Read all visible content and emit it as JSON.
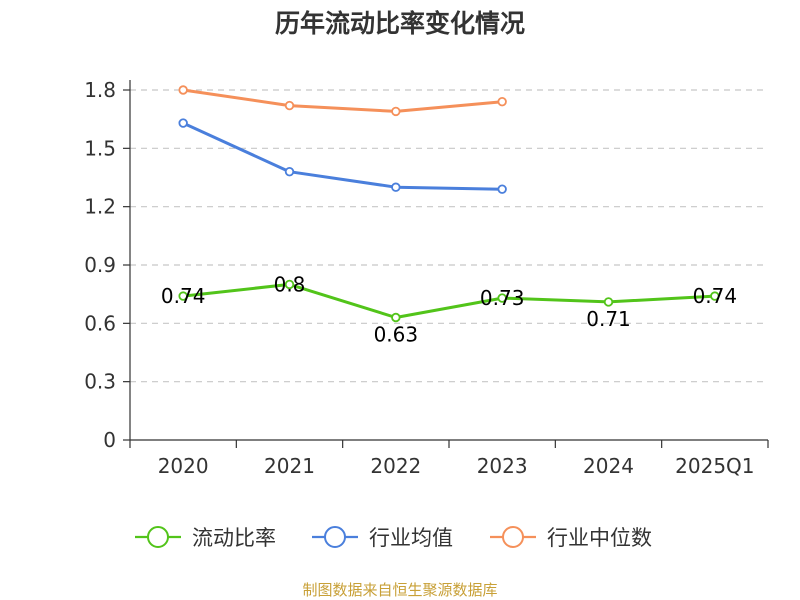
{
  "chart_data": {
    "type": "line",
    "title": "历年流动比率变化情况",
    "categories": [
      "2020",
      "2021",
      "2022",
      "2023",
      "2024",
      "2025Q1"
    ],
    "ylim": [
      0,
      1.8
    ],
    "yticks": [
      "0",
      "0.3",
      "0.6",
      "0.9",
      "1.2",
      "1.5",
      "1.8"
    ],
    "ytick_values": [
      0,
      0.3,
      0.6,
      0.9,
      1.2,
      1.5,
      1.8
    ],
    "grid": true,
    "legend_position": "bottom",
    "series": [
      {
        "name": "流动比率",
        "color": "#52c41a",
        "values": [
          0.74,
          0.8,
          0.63,
          0.73,
          0.71,
          0.74
        ],
        "labels": [
          "0.74",
          "0.8",
          "0.63",
          "0.73",
          "0.71",
          "0.74"
        ],
        "show_labels": true
      },
      {
        "name": "行业均值",
        "color": "#4a7fdc",
        "values": [
          1.63,
          1.38,
          1.3,
          1.29,
          null,
          null
        ],
        "show_labels": false
      },
      {
        "name": "行业中位数",
        "color": "#f5905a",
        "values": [
          1.8,
          1.72,
          1.69,
          1.74,
          null,
          null
        ],
        "show_labels": false
      }
    ],
    "source": "制图数据来自恒生聚源数据库",
    "source_color": "#c8a037"
  }
}
